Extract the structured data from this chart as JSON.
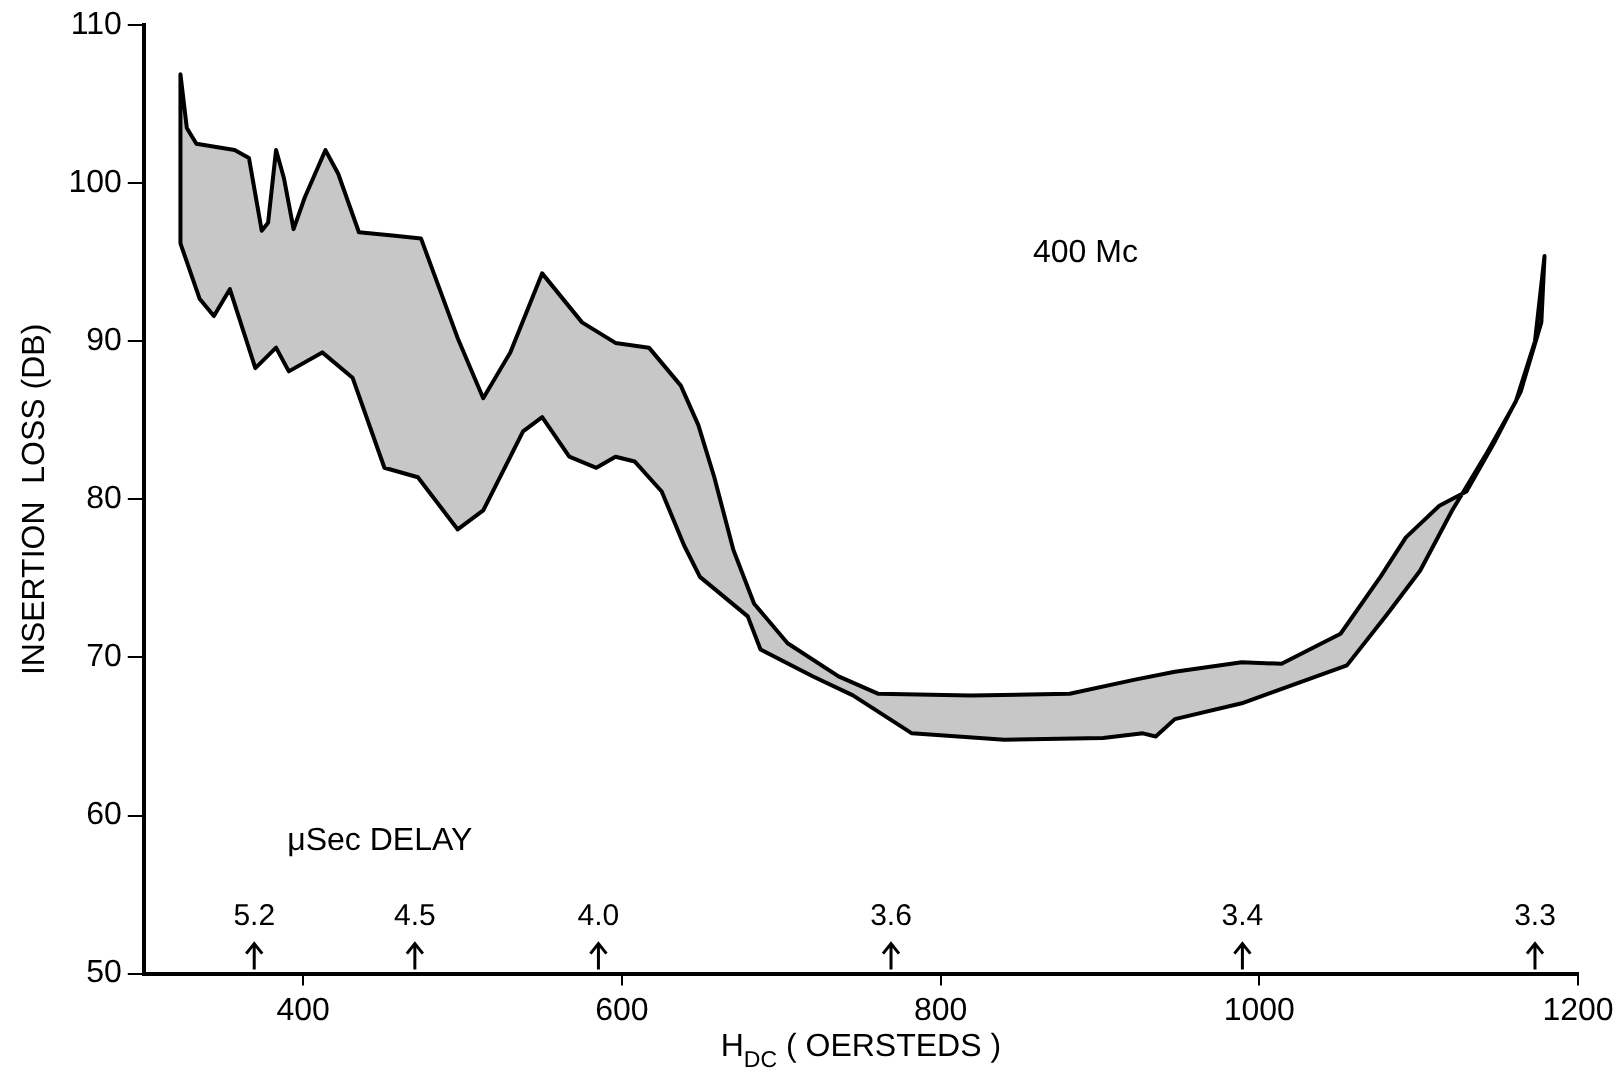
{
  "chart_data": {
    "type": "area",
    "xlabel": "H$_{DC}$ ( OERSTEDS )",
    "ylabel": "INSERTION  LOSS (DB)",
    "xlim": [
      300,
      1200
    ],
    "xticks": [
      400,
      600,
      800,
      1000,
      1200
    ],
    "ylim": [
      50,
      110
    ],
    "yticks": [
      50,
      60,
      70,
      80,
      90,
      100,
      110
    ],
    "grid": false,
    "legend": false,
    "marker": "none",
    "line_style": "solid",
    "series": [
      {
        "color": "#000000",
        "x": [
          323,
          323,
          327,
          333,
          357,
          366,
          374,
          378,
          383,
          388,
          394,
          401,
          414,
          422,
          435,
          456,
          474,
          482,
          497,
          513,
          530,
          550,
          575,
          596,
          617,
          637,
          648,
          658,
          670,
          683,
          704,
          736,
          761,
          819,
          881,
          922,
          947,
          989,
          1014,
          1051,
          1076,
          1092,
          1113,
          1130,
          1148,
          1164,
          1177,
          1179,
          1173,
          1161,
          1142,
          1121,
          1101,
          1080,
          1055,
          989,
          947,
          935,
          927,
          902,
          840,
          782,
          745,
          720,
          687,
          679,
          649,
          639,
          625,
          608,
          596,
          584,
          567,
          550,
          538,
          513,
          497,
          472,
          451,
          431,
          412,
          391,
          383,
          370,
          354,
          344,
          335,
          323
        ],
        "values": [
          96.2,
          106.9,
          103.5,
          102.5,
          102.1,
          101.6,
          97.0,
          97.5,
          102.1,
          100.3,
          97.1,
          99.1,
          102.1,
          100.6,
          96.9,
          96.7,
          96.5,
          94.3,
          90.2,
          86.4,
          89.3,
          94.3,
          91.2,
          89.9,
          89.6,
          87.2,
          84.7,
          81.4,
          76.8,
          73.4,
          70.9,
          68.8,
          67.7,
          67.6,
          67.7,
          68.6,
          69.1,
          69.7,
          69.6,
          71.5,
          75.1,
          77.6,
          79.6,
          80.5,
          83.7,
          86.8,
          91.2,
          95.4,
          90.0,
          86.2,
          82.8,
          79.3,
          75.5,
          72.7,
          69.5,
          67.1,
          66.1,
          65.0,
          65.2,
          64.9,
          64.8,
          65.2,
          67.6,
          68.8,
          70.5,
          72.6,
          75.1,
          77.1,
          80.5,
          82.4,
          82.7,
          82.0,
          82.7,
          85.2,
          84.3,
          79.3,
          78.1,
          81.4,
          82.0,
          87.7,
          89.3,
          88.1,
          89.6,
          88.3,
          93.3,
          91.6,
          92.7,
          96.2
        ]
      }
    ],
    "annotations": [
      "400 Mc",
      "μSec DELAY",
      "5.2",
      "4.5",
      "4.0",
      "3.6",
      "3.4",
      "3.3"
    ]
  }
}
